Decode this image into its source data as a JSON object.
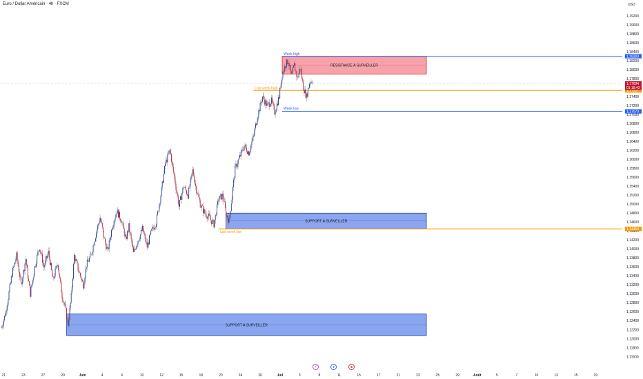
{
  "header": {
    "title": "Euro / Dollar Américain · 4h · FXCM",
    "currency": "USD"
  },
  "bottom_icons": [
    {
      "name": "economic-event-icon",
      "glyph": "⚡",
      "color": "#b43fd1"
    },
    {
      "name": "earnings-event-icon",
      "glyph": "●",
      "color": "#2962ff"
    },
    {
      "name": "us-flag-icon",
      "glyph": "■",
      "color": "#c73a3a"
    }
  ],
  "chart_data": {
    "type": "candlestick",
    "instrument": "Euro / Dollar Américain",
    "timeframe": "4h",
    "source": "FXCM",
    "y_range": [
      1.115,
      1.194
    ],
    "y_ticks": [
      "1,19200",
      "1,19000",
      "1,18800",
      "1,18600",
      "1,18400",
      "1,18200",
      "1,18000",
      "1,17800",
      "1,17600",
      "1,17400",
      "1,17200",
      "1,17000",
      "1,16800",
      "1,16600",
      "1,16400",
      "1,16200",
      "1,16000",
      "1,15800",
      "1,15600",
      "1,15400",
      "1,15200",
      "1,15000",
      "1,14800",
      "1,14600",
      "1,14400",
      "1,14200",
      "1,14000",
      "1,13800",
      "1,13600",
      "1,13400",
      "1,13200",
      "1,13000",
      "1,12800",
      "1,12600",
      "1,12400",
      "1,12200",
      "1,12000",
      "1,11800",
      "1,11600"
    ],
    "x_ticks": [
      {
        "label": "21",
        "bar": 3,
        "bold": false
      },
      {
        "label": "23",
        "bar": 29,
        "bold": false
      },
      {
        "label": "27",
        "bar": 55,
        "bold": false
      },
      {
        "label": "29",
        "bar": 81,
        "bold": false
      },
      {
        "label": "Juin",
        "bar": 107,
        "bold": true
      },
      {
        "label": "4",
        "bar": 133,
        "bold": false
      },
      {
        "label": "6",
        "bar": 159,
        "bold": false
      },
      {
        "label": "10",
        "bar": 185,
        "bold": false
      },
      {
        "label": "12",
        "bar": 211,
        "bold": false
      },
      {
        "label": "15",
        "bar": 237,
        "bold": false
      },
      {
        "label": "18",
        "bar": 263,
        "bold": false
      },
      {
        "label": "20",
        "bar": 289,
        "bold": false
      },
      {
        "label": "24",
        "bar": 315,
        "bold": false
      },
      {
        "label": "26",
        "bar": 341,
        "bold": false
      },
      {
        "label": "Juil",
        "bar": 367,
        "bold": true
      },
      {
        "label": "3",
        "bar": 393,
        "bold": false
      },
      {
        "label": "8",
        "bar": 419,
        "bold": false
      },
      {
        "label": "11",
        "bar": 445,
        "bold": false
      },
      {
        "label": "15",
        "bar": 471,
        "bold": false
      },
      {
        "label": "17",
        "bar": 497,
        "bold": false
      },
      {
        "label": "21",
        "bar": 523,
        "bold": false
      },
      {
        "label": "23",
        "bar": 549,
        "bold": false
      },
      {
        "label": "25",
        "bar": 575,
        "bold": false
      },
      {
        "label": "29",
        "bar": 601,
        "bold": false
      },
      {
        "label": "Août",
        "bar": 627,
        "bold": true
      },
      {
        "label": "5",
        "bar": 653,
        "bold": false
      },
      {
        "label": "7",
        "bar": 679,
        "bold": false
      },
      {
        "label": "10",
        "bar": 705,
        "bold": false
      },
      {
        "label": "13",
        "bar": 731,
        "bold": false
      },
      {
        "label": "15",
        "bar": 757,
        "bold": false
      },
      {
        "label": "19",
        "bar": 783,
        "bold": false
      }
    ],
    "candle_colors": {
      "up": "#1e3f9e",
      "down": "#c0182c",
      "wick": "#6b6b6b"
    },
    "price_path": [
      [
        0,
        1.1225
      ],
      [
        6,
        1.126
      ],
      [
        14,
        1.1345
      ],
      [
        20,
        1.1385
      ],
      [
        26,
        1.132
      ],
      [
        32,
        1.1378
      ],
      [
        38,
        1.13
      ],
      [
        44,
        1.136
      ],
      [
        50,
        1.1405
      ],
      [
        56,
        1.136
      ],
      [
        62,
        1.1392
      ],
      [
        68,
        1.133
      ],
      [
        74,
        1.137
      ],
      [
        80,
        1.1295
      ],
      [
        84,
        1.127
      ],
      [
        88,
        1.1232
      ],
      [
        92,
        1.1295
      ],
      [
        96,
        1.1385
      ],
      [
        102,
        1.135
      ],
      [
        108,
        1.132
      ],
      [
        112,
        1.1365
      ],
      [
        118,
        1.1385
      ],
      [
        124,
        1.143
      ],
      [
        130,
        1.147
      ],
      [
        136,
        1.142
      ],
      [
        140,
        1.1395
      ],
      [
        146,
        1.145
      ],
      [
        152,
        1.1485
      ],
      [
        158,
        1.1465
      ],
      [
        164,
        1.142
      ],
      [
        168,
        1.145
      ],
      [
        174,
        1.139
      ],
      [
        180,
        1.142
      ],
      [
        186,
        1.1445
      ],
      [
        192,
        1.1405
      ],
      [
        198,
        1.144
      ],
      [
        204,
        1.146
      ],
      [
        210,
        1.152
      ],
      [
        216,
        1.159
      ],
      [
        222,
        1.162
      ],
      [
        228,
        1.156
      ],
      [
        234,
        1.1495
      ],
      [
        240,
        1.154
      ],
      [
        246,
        1.152
      ],
      [
        252,
        1.1575
      ],
      [
        256,
        1.154
      ],
      [
        262,
        1.15
      ],
      [
        268,
        1.148
      ],
      [
        274,
        1.147
      ],
      [
        280,
        1.1455
      ],
      [
        286,
        1.151
      ],
      [
        292,
        1.152
      ],
      [
        296,
        1.1478
      ],
      [
        300,
        1.1462
      ],
      [
        304,
        1.152
      ],
      [
        308,
        1.158
      ],
      [
        314,
        1.1605
      ],
      [
        320,
        1.163
      ],
      [
        326,
        1.1615
      ],
      [
        332,
        1.165
      ],
      [
        338,
        1.17
      ],
      [
        344,
        1.174
      ],
      [
        350,
        1.172
      ],
      [
        356,
        1.173
      ],
      [
        360,
        1.1705
      ],
      [
        366,
        1.174
      ],
      [
        370,
        1.179
      ],
      [
        374,
        1.181
      ],
      [
        378,
        1.182
      ],
      [
        382,
        1.1785
      ],
      [
        386,
        1.181
      ],
      [
        390,
        1.178
      ],
      [
        394,
        1.1805
      ],
      [
        398,
        1.176
      ],
      [
        402,
        1.174
      ],
      [
        406,
        1.177
      ],
      [
        410,
        1.1778
      ]
    ],
    "series": [
      {
        "name": "Week high",
        "type": "hline",
        "value": 1.183,
        "color": "#2962ff",
        "label_color": "#2962ff",
        "price_tag": "1,18300",
        "from_bar": 370
      },
      {
        "name": "Last week high",
        "type": "hline",
        "value": 1.17537,
        "color": "#f59a00",
        "label_color": "#f59a00",
        "price_tag": "1,17537",
        "from_bar": 332
      },
      {
        "name": "Week low",
        "type": "hline",
        "value": 1.1707,
        "color": "#2962ff",
        "label_color": "#2962ff",
        "price_tag": "1,17070",
        "from_bar": 370
      },
      {
        "name": "Last week low",
        "type": "hline",
        "value": 1.1445,
        "color": "#f59a00",
        "label_color": "#f59a00",
        "price_tag": "1,14450",
        "from_bar": 286
      }
    ],
    "zones": [
      {
        "label": "RÉSISTANCE À SURVEILLER",
        "top": 1.183,
        "bottom": 1.179,
        "from_bar": 370,
        "to_bar": 560,
        "fill": "#f7a1a8",
        "stroke": "#cc2e3c"
      },
      {
        "label": "SUPPORT À SURVEILLER",
        "top": 1.148,
        "bottom": 1.1445,
        "from_bar": 296,
        "to_bar": 560,
        "fill": "#8aa6f0",
        "stroke": "#1d3f9c"
      },
      {
        "label": "SUPPORT À SURVEILLER",
        "top": 1.1255,
        "bottom": 1.1207,
        "from_bar": 86,
        "to_bar": 560,
        "fill": "#8aa6f0",
        "stroke": "#1d3f9c"
      }
    ],
    "current_price": {
      "value": 1.17694,
      "label": "1,17694",
      "countdown": "01:18:43",
      "color": "#c0182c"
    },
    "grid": false,
    "legend": "none"
  }
}
